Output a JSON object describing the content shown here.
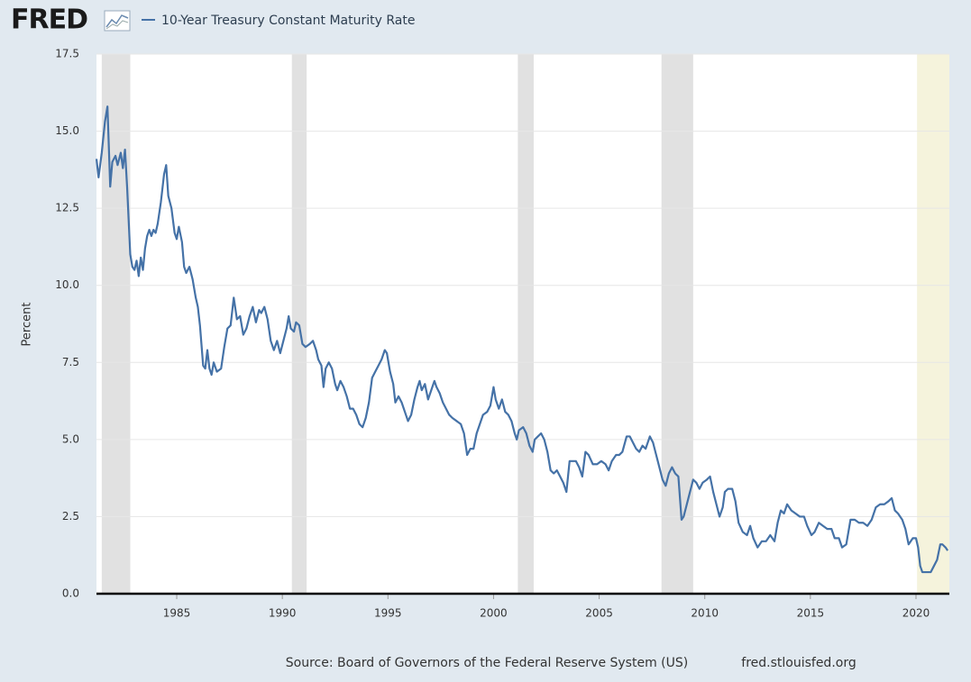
{
  "chart_data": {
    "type": "line",
    "logo": "FRED",
    "ylabel": "Percent",
    "source": "Source: Board of Governors of the Federal Reserve System (US)",
    "source_url": "fred.stlouisfed.org",
    "xlim": [
      1981.2,
      2021.58
    ],
    "xticks": [
      1985,
      1990,
      1995,
      2000,
      2005,
      2010,
      2015,
      2020
    ],
    "ylim": [
      0,
      17.5
    ],
    "yticks": [
      {
        "value": 0,
        "label": "0.0"
      },
      2.5,
      {
        "value": 5,
        "label": "5.0"
      },
      7.5,
      {
        "value": 10,
        "label": "10.0"
      },
      12.5,
      {
        "value": 15,
        "label": "15.0"
      },
      17.5
    ],
    "grid": true,
    "recession_color": "#e1e1e1",
    "recessions": [
      [
        1981.45,
        1982.8
      ],
      [
        1990.45,
        1991.15
      ],
      [
        2001.15,
        2001.9
      ],
      [
        2007.95,
        2009.45
      ]
    ],
    "highlight_color": "#f5f3dc",
    "highlight": [
      2020.05,
      2021.58
    ],
    "x": [
      1981.2,
      1981.3,
      1981.45,
      1981.6,
      1981.72,
      1981.85,
      1981.95,
      1982.1,
      1982.2,
      1982.35,
      1982.45,
      1982.55,
      1982.65,
      1982.8,
      1982.9,
      1983.0,
      1983.1,
      1983.2,
      1983.3,
      1983.4,
      1983.5,
      1983.6,
      1983.7,
      1983.8,
      1983.9,
      1984.0,
      1984.1,
      1984.25,
      1984.4,
      1984.5,
      1984.6,
      1984.75,
      1984.9,
      1985.0,
      1985.1,
      1985.25,
      1985.35,
      1985.45,
      1985.6,
      1985.75,
      1985.9,
      1986.0,
      1986.1,
      1986.25,
      1986.35,
      1986.45,
      1986.55,
      1986.65,
      1986.75,
      1986.9,
      1987.1,
      1987.25,
      1987.4,
      1987.55,
      1987.7,
      1987.85,
      1988.0,
      1988.15,
      1988.3,
      1988.45,
      1988.6,
      1988.75,
      1988.9,
      1989.0,
      1989.15,
      1989.3,
      1989.45,
      1989.6,
      1989.75,
      1989.9,
      1990.05,
      1990.2,
      1990.3,
      1990.4,
      1990.55,
      1990.65,
      1990.8,
      1990.95,
      1991.1,
      1991.3,
      1991.45,
      1991.6,
      1991.7,
      1991.85,
      1991.95,
      1992.05,
      1992.2,
      1992.35,
      1992.5,
      1992.6,
      1992.75,
      1992.9,
      1993.05,
      1993.2,
      1993.35,
      1993.5,
      1993.65,
      1993.8,
      1993.95,
      1994.1,
      1994.25,
      1994.4,
      1994.55,
      1994.7,
      1994.85,
      1994.95,
      1995.1,
      1995.25,
      1995.35,
      1995.5,
      1995.65,
      1995.8,
      1995.95,
      1996.1,
      1996.25,
      1996.4,
      1996.5,
      1996.6,
      1996.75,
      1996.9,
      1997.05,
      1997.2,
      1997.3,
      1997.45,
      1997.6,
      1997.75,
      1997.9,
      1998.05,
      1998.25,
      1998.45,
      1998.6,
      1998.75,
      1998.9,
      1999.05,
      1999.2,
      1999.35,
      1999.5,
      1999.7,
      1999.85,
      2000.0,
      2000.1,
      2000.25,
      2000.4,
      2000.55,
      2000.7,
      2000.85,
      2001.0,
      2001.1,
      2001.2,
      2001.4,
      2001.55,
      2001.7,
      2001.85,
      2001.95,
      2002.1,
      2002.25,
      2002.4,
      2002.55,
      2002.7,
      2002.85,
      2003.0,
      2003.15,
      2003.3,
      2003.45,
      2003.6,
      2003.75,
      2003.9,
      2004.05,
      2004.2,
      2004.35,
      2004.5,
      2004.7,
      2004.9,
      2005.1,
      2005.3,
      2005.45,
      2005.6,
      2005.8,
      2005.95,
      2006.1,
      2006.3,
      2006.45,
      2006.6,
      2006.75,
      2006.9,
      2007.05,
      2007.2,
      2007.4,
      2007.55,
      2007.7,
      2007.85,
      2008.0,
      2008.15,
      2008.3,
      2008.45,
      2008.6,
      2008.75,
      2008.9,
      2009.0,
      2009.15,
      2009.3,
      2009.45,
      2009.6,
      2009.75,
      2009.9,
      2010.1,
      2010.25,
      2010.4,
      2010.55,
      2010.7,
      2010.85,
      2010.95,
      2011.1,
      2011.3,
      2011.45,
      2011.6,
      2011.8,
      2012.0,
      2012.15,
      2012.3,
      2012.5,
      2012.7,
      2012.9,
      2013.1,
      2013.3,
      2013.45,
      2013.6,
      2013.75,
      2013.9,
      2014.1,
      2014.3,
      2014.5,
      2014.7,
      2014.85,
      2015.05,
      2015.2,
      2015.4,
      2015.6,
      2015.8,
      2016.0,
      2016.15,
      2016.35,
      2016.5,
      2016.7,
      2016.9,
      2017.1,
      2017.3,
      2017.5,
      2017.7,
      2017.9,
      2018.1,
      2018.3,
      2018.5,
      2018.7,
      2018.85,
      2019.0,
      2019.15,
      2019.35,
      2019.5,
      2019.65,
      2019.85,
      2020.0,
      2020.1,
      2020.2,
      2020.3,
      2020.5,
      2020.7,
      2020.85,
      2021.0,
      2021.15,
      2021.25,
      2021.4,
      2021.5
    ],
    "series": [
      {
        "name": "10-Year Treasury Constant Maturity Rate",
        "color": "#4572a7",
        "values": [
          14.1,
          13.5,
          14.3,
          15.3,
          15.8,
          13.2,
          14.0,
          14.2,
          13.9,
          14.3,
          13.8,
          14.4,
          13.2,
          11.0,
          10.6,
          10.5,
          10.8,
          10.3,
          10.9,
          10.5,
          11.2,
          11.6,
          11.8,
          11.6,
          11.8,
          11.7,
          12.0,
          12.7,
          13.6,
          13.9,
          12.9,
          12.5,
          11.7,
          11.5,
          11.9,
          11.4,
          10.6,
          10.4,
          10.6,
          10.2,
          9.6,
          9.3,
          8.7,
          7.4,
          7.3,
          7.9,
          7.3,
          7.1,
          7.5,
          7.2,
          7.3,
          8.0,
          8.6,
          8.7,
          9.6,
          8.9,
          9.0,
          8.4,
          8.6,
          9.0,
          9.3,
          8.8,
          9.2,
          9.1,
          9.3,
          8.9,
          8.2,
          7.9,
          8.2,
          7.8,
          8.2,
          8.6,
          9.0,
          8.6,
          8.5,
          8.8,
          8.7,
          8.1,
          8.0,
          8.1,
          8.2,
          7.9,
          7.6,
          7.4,
          6.7,
          7.3,
          7.5,
          7.3,
          6.8,
          6.6,
          6.9,
          6.7,
          6.4,
          6.0,
          6.0,
          5.8,
          5.5,
          5.4,
          5.7,
          6.2,
          7.0,
          7.2,
          7.4,
          7.6,
          7.9,
          7.8,
          7.2,
          6.8,
          6.2,
          6.4,
          6.2,
          5.9,
          5.6,
          5.8,
          6.3,
          6.7,
          6.9,
          6.6,
          6.8,
          6.3,
          6.6,
          6.9,
          6.7,
          6.5,
          6.2,
          6.0,
          5.8,
          5.7,
          5.6,
          5.5,
          5.2,
          4.5,
          4.7,
          4.7,
          5.2,
          5.5,
          5.8,
          5.9,
          6.1,
          6.7,
          6.3,
          6.0,
          6.3,
          5.9,
          5.8,
          5.6,
          5.2,
          5.0,
          5.3,
          5.4,
          5.2,
          4.8,
          4.6,
          5.0,
          5.1,
          5.2,
          5.0,
          4.6,
          4.0,
          3.9,
          4.0,
          3.8,
          3.6,
          3.3,
          4.3,
          4.3,
          4.3,
          4.1,
          3.8,
          4.6,
          4.5,
          4.2,
          4.2,
          4.3,
          4.2,
          4.0,
          4.3,
          4.5,
          4.5,
          4.6,
          5.1,
          5.1,
          4.9,
          4.7,
          4.6,
          4.8,
          4.7,
          5.1,
          4.9,
          4.5,
          4.1,
          3.7,
          3.5,
          3.9,
          4.1,
          3.9,
          3.8,
          2.4,
          2.5,
          2.9,
          3.3,
          3.7,
          3.6,
          3.4,
          3.6,
          3.7,
          3.8,
          3.3,
          2.9,
          2.5,
          2.8,
          3.3,
          3.4,
          3.4,
          3.0,
          2.3,
          2.0,
          1.9,
          2.2,
          1.8,
          1.5,
          1.7,
          1.7,
          1.9,
          1.7,
          2.3,
          2.7,
          2.6,
          2.9,
          2.7,
          2.6,
          2.5,
          2.5,
          2.2,
          1.9,
          2.0,
          2.3,
          2.2,
          2.1,
          2.1,
          1.8,
          1.8,
          1.5,
          1.6,
          2.4,
          2.4,
          2.3,
          2.3,
          2.2,
          2.4,
          2.8,
          2.9,
          2.9,
          3.0,
          3.1,
          2.7,
          2.6,
          2.4,
          2.1,
          1.6,
          1.8,
          1.8,
          1.5,
          0.9,
          0.7,
          0.7,
          0.7,
          0.9,
          1.1,
          1.6,
          1.6,
          1.5,
          1.4
        ]
      }
    ]
  }
}
